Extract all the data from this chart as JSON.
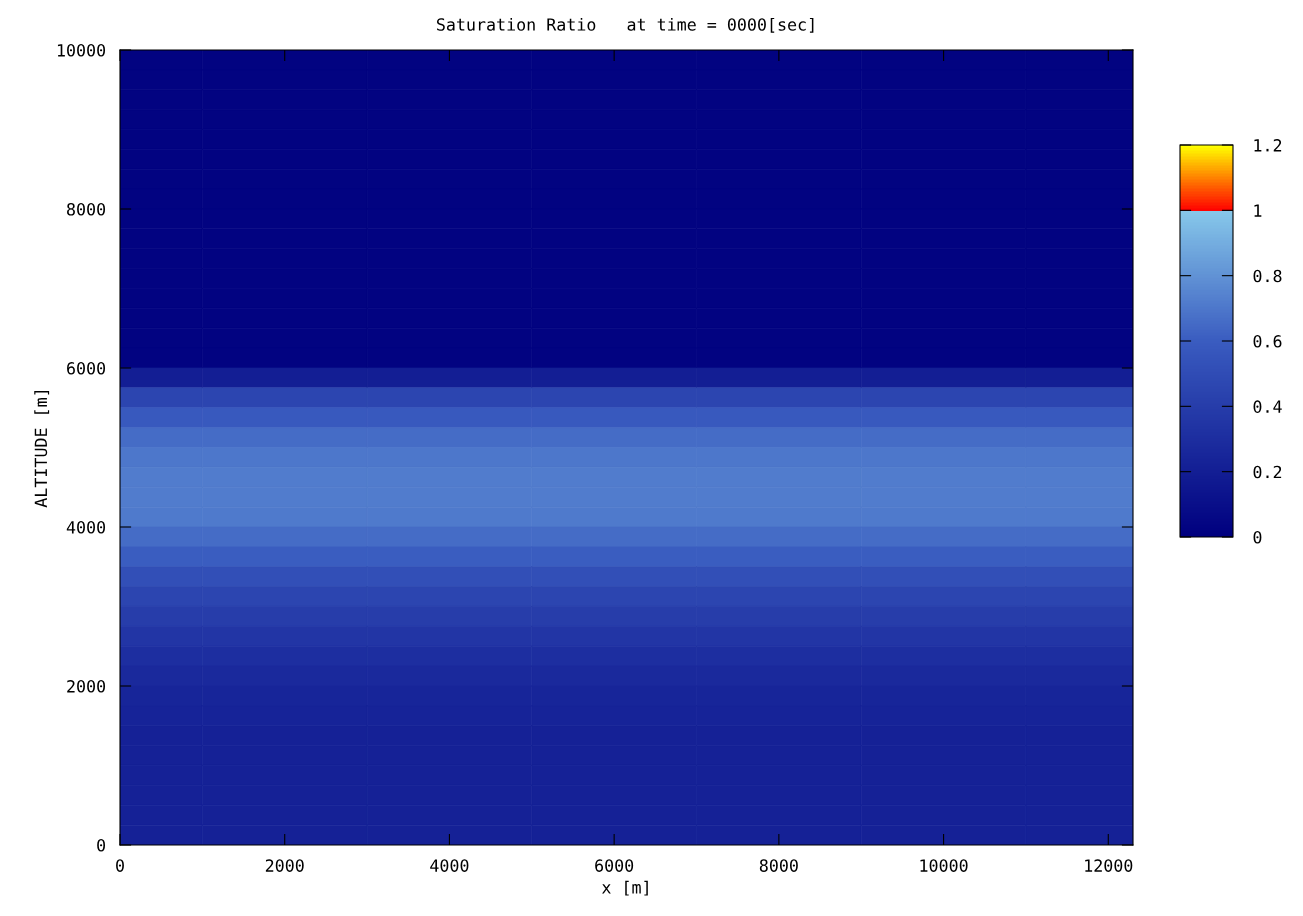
{
  "chart_data": {
    "type": "heatmap",
    "title": "Saturation Ratio   at time = 0000[sec]",
    "xlabel": "x [m]",
    "ylabel": "ALTITUDE [m]",
    "x": [
      0,
      2000,
      4000,
      6000,
      8000,
      10000,
      12000
    ],
    "y": [
      9875,
      9625,
      9375,
      9125,
      8875,
      8625,
      8375,
      8125,
      7875,
      7625,
      7375,
      7125,
      6875,
      6625,
      6375,
      6125,
      5875,
      5625,
      5375,
      5125,
      4875,
      4625,
      4375,
      4125,
      3875,
      3625,
      3375,
      3125,
      2875,
      2625,
      2375,
      2125,
      1875,
      1625,
      1375,
      1125,
      875,
      625,
      375,
      125
    ],
    "cells": [
      [
        0.02,
        0.02,
        0.02,
        0.02,
        0.02,
        0.02,
        0.02
      ],
      [
        0.02,
        0.02,
        0.02,
        0.02,
        0.02,
        0.02,
        0.02
      ],
      [
        0.02,
        0.02,
        0.02,
        0.02,
        0.02,
        0.02,
        0.02
      ],
      [
        0.02,
        0.02,
        0.02,
        0.02,
        0.02,
        0.02,
        0.02
      ],
      [
        0.02,
        0.02,
        0.02,
        0.02,
        0.02,
        0.02,
        0.02
      ],
      [
        0.02,
        0.02,
        0.02,
        0.02,
        0.02,
        0.02,
        0.02
      ],
      [
        0.02,
        0.02,
        0.02,
        0.02,
        0.02,
        0.02,
        0.02
      ],
      [
        0.02,
        0.02,
        0.02,
        0.02,
        0.02,
        0.02,
        0.02
      ],
      [
        0.02,
        0.02,
        0.02,
        0.02,
        0.02,
        0.02,
        0.02
      ],
      [
        0.02,
        0.02,
        0.02,
        0.02,
        0.02,
        0.02,
        0.02
      ],
      [
        0.02,
        0.02,
        0.02,
        0.02,
        0.02,
        0.02,
        0.02
      ],
      [
        0.02,
        0.02,
        0.02,
        0.02,
        0.02,
        0.02,
        0.02
      ],
      [
        0.02,
        0.02,
        0.02,
        0.02,
        0.02,
        0.02,
        0.02
      ],
      [
        0.02,
        0.02,
        0.02,
        0.02,
        0.02,
        0.02,
        0.02
      ],
      [
        0.02,
        0.02,
        0.02,
        0.02,
        0.02,
        0.02,
        0.02
      ],
      [
        0.02,
        0.02,
        0.02,
        0.02,
        0.02,
        0.02,
        0.02
      ],
      [
        0.2,
        0.2,
        0.2,
        0.2,
        0.2,
        0.2,
        0.2
      ],
      [
        0.45,
        0.45,
        0.45,
        0.45,
        0.45,
        0.45,
        0.45
      ],
      [
        0.58,
        0.58,
        0.58,
        0.58,
        0.58,
        0.58,
        0.58
      ],
      [
        0.66,
        0.66,
        0.66,
        0.66,
        0.66,
        0.66,
        0.66
      ],
      [
        0.7,
        0.7,
        0.7,
        0.7,
        0.7,
        0.7,
        0.7
      ],
      [
        0.72,
        0.72,
        0.72,
        0.72,
        0.72,
        0.72,
        0.72
      ],
      [
        0.72,
        0.72,
        0.72,
        0.72,
        0.72,
        0.72,
        0.72
      ],
      [
        0.71,
        0.71,
        0.71,
        0.71,
        0.71,
        0.71,
        0.71
      ],
      [
        0.66,
        0.66,
        0.66,
        0.66,
        0.66,
        0.66,
        0.66
      ],
      [
        0.6,
        0.6,
        0.6,
        0.6,
        0.6,
        0.6,
        0.6
      ],
      [
        0.52,
        0.52,
        0.52,
        0.52,
        0.52,
        0.52,
        0.52
      ],
      [
        0.45,
        0.45,
        0.45,
        0.45,
        0.45,
        0.45,
        0.45
      ],
      [
        0.4,
        0.4,
        0.4,
        0.4,
        0.4,
        0.4,
        0.4
      ],
      [
        0.35,
        0.35,
        0.35,
        0.35,
        0.35,
        0.35,
        0.35
      ],
      [
        0.3,
        0.3,
        0.3,
        0.3,
        0.3,
        0.3,
        0.3
      ],
      [
        0.27,
        0.27,
        0.27,
        0.27,
        0.27,
        0.27,
        0.27
      ],
      [
        0.24,
        0.24,
        0.24,
        0.24,
        0.24,
        0.24,
        0.24
      ],
      [
        0.23,
        0.23,
        0.23,
        0.23,
        0.23,
        0.23,
        0.23
      ],
      [
        0.22,
        0.22,
        0.22,
        0.22,
        0.22,
        0.22,
        0.22
      ],
      [
        0.22,
        0.22,
        0.22,
        0.22,
        0.22,
        0.22,
        0.22
      ],
      [
        0.22,
        0.22,
        0.22,
        0.22,
        0.22,
        0.22,
        0.22
      ],
      [
        0.22,
        0.22,
        0.22,
        0.22,
        0.22,
        0.22,
        0.22
      ],
      [
        0.22,
        0.22,
        0.22,
        0.22,
        0.22,
        0.22,
        0.22
      ],
      [
        0.22,
        0.22,
        0.22,
        0.22,
        0.22,
        0.22,
        0.22
      ]
    ],
    "xlim": [
      0,
      12300
    ],
    "xticks": [
      0,
      2000,
      4000,
      6000,
      8000,
      10000,
      12000
    ],
    "ylim": [
      0,
      10000
    ],
    "yticks": [
      0,
      2000,
      4000,
      6000,
      8000,
      10000
    ],
    "clim": [
      0,
      1.2
    ],
    "cticks": [
      0,
      0.2,
      0.4,
      0.6,
      0.8,
      1,
      1.2
    ]
  }
}
